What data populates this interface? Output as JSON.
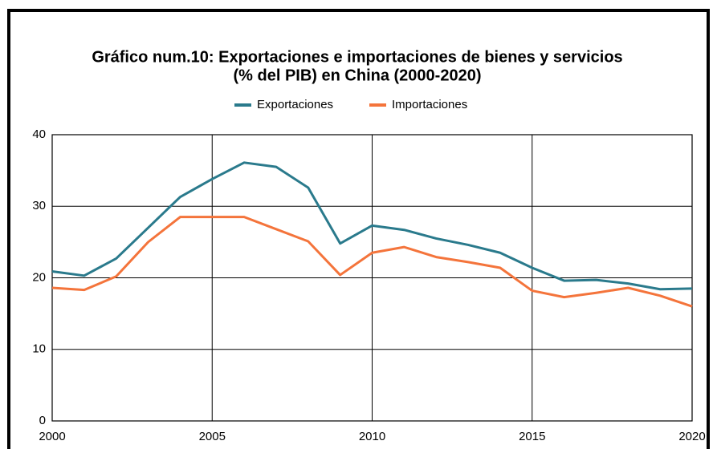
{
  "chart_data": {
    "type": "line",
    "title": [
      "Gráfico num.10: Exportaciones e importaciones de bienes y servicios",
      "(% del PIB) en China (2000-2020)"
    ],
    "x": [
      2000,
      2001,
      2002,
      2003,
      2004,
      2005,
      2006,
      2007,
      2008,
      2009,
      2010,
      2011,
      2012,
      2013,
      2014,
      2015,
      2016,
      2017,
      2018,
      2019,
      2020
    ],
    "series": [
      {
        "name": "Exportaciones",
        "color": "#2a7a8c",
        "values": [
          20.9,
          20.3,
          22.7,
          27.0,
          31.3,
          33.8,
          36.1,
          35.5,
          32.6,
          24.8,
          27.3,
          26.7,
          25.5,
          24.6,
          23.5,
          21.4,
          19.6,
          19.7,
          19.2,
          18.4,
          18.5
        ]
      },
      {
        "name": "Importaciones",
        "color": "#f4743b",
        "values": [
          18.6,
          18.3,
          20.2,
          25.0,
          28.5,
          28.5,
          28.5,
          26.8,
          25.1,
          20.4,
          23.5,
          24.3,
          22.9,
          22.2,
          21.4,
          18.2,
          17.3,
          17.9,
          18.6,
          17.5,
          16.0
        ]
      }
    ],
    "xlim": [
      2000,
      2020
    ],
    "xticks": [
      2000,
      2005,
      2010,
      2015,
      2020
    ],
    "ylim": [
      0,
      40
    ],
    "yticks": [
      0,
      10,
      20,
      30,
      40
    ],
    "grid": true,
    "legend": "top"
  }
}
